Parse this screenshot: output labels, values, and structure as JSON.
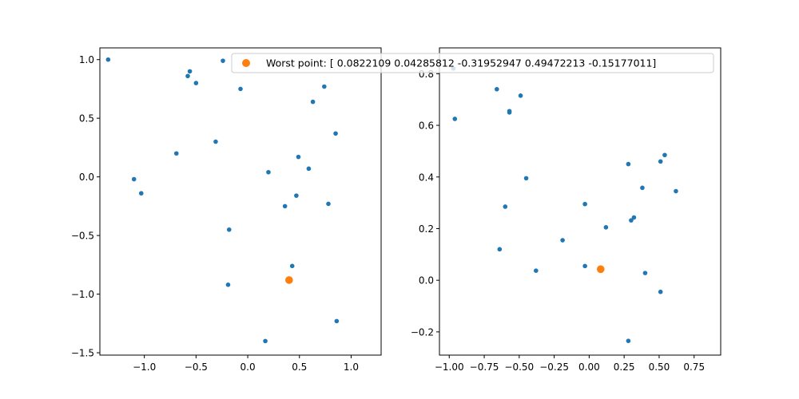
{
  "chart_data": [
    {
      "type": "scatter",
      "xlim": [
        -1.43,
        1.29
      ],
      "ylim": [
        -1.52,
        1.1
      ],
      "xticks": [
        -1.0,
        -0.5,
        0.0,
        0.5,
        1.0
      ],
      "xtick_labels": [
        "−1.0",
        "−0.5",
        "0.0",
        "0.5",
        "1.0"
      ],
      "yticks": [
        -1.5,
        -1.0,
        -0.5,
        0.0,
        0.5,
        1.0
      ],
      "ytick_labels": [
        "−1.5",
        "−1.0",
        "−0.5",
        "0.0",
        "0.5",
        "1.0"
      ],
      "grid": false,
      "series": [
        {
          "color": "#1f77b4",
          "points": [
            [
              -1.35,
              1.0
            ],
            [
              -0.56,
              0.9
            ],
            [
              -0.58,
              0.86
            ],
            [
              -0.5,
              0.8
            ],
            [
              -0.24,
              0.99
            ],
            [
              -0.07,
              0.75
            ],
            [
              0.74,
              0.77
            ],
            [
              0.63,
              0.64
            ],
            [
              0.85,
              0.37
            ],
            [
              -0.31,
              0.3
            ],
            [
              -0.69,
              0.2
            ],
            [
              0.49,
              0.17
            ],
            [
              0.59,
              0.07
            ],
            [
              0.2,
              0.04
            ],
            [
              -1.1,
              -0.02
            ],
            [
              -1.03,
              -0.14
            ],
            [
              0.47,
              -0.16
            ],
            [
              0.36,
              -0.25
            ],
            [
              0.78,
              -0.23
            ],
            [
              -0.18,
              -0.45
            ],
            [
              0.43,
              -0.76
            ],
            [
              -0.19,
              -0.92
            ],
            [
              0.86,
              -1.23
            ],
            [
              0.17,
              -1.4
            ]
          ]
        },
        {
          "name": "Worst point: [ 0.0822109   0.04285812 -0.31952947  0.49472213 -0.15177011]",
          "color": "#ff7f0e",
          "points": [
            [
              0.4,
              -0.88
            ]
          ]
        }
      ]
    },
    {
      "type": "scatter",
      "xlim": [
        -1.07,
        0.94
      ],
      "ylim": [
        -0.29,
        0.9
      ],
      "xticks": [
        -1.0,
        -0.75,
        -0.5,
        -0.25,
        0.0,
        0.25,
        0.5,
        0.75
      ],
      "xtick_labels": [
        "−1.00",
        "−0.75",
        "−0.50",
        "−0.25",
        "0.00",
        "0.25",
        "0.50",
        "0.75"
      ],
      "yticks": [
        -0.2,
        0.0,
        0.2,
        0.4,
        0.6,
        0.8
      ],
      "ytick_labels": [
        "−0.2",
        "0.0",
        "0.2",
        "0.4",
        "0.6",
        "0.8"
      ],
      "grid": false,
      "series": [
        {
          "color": "#1f77b4",
          "points": [
            [
              -0.97,
              0.82
            ],
            [
              -0.96,
              0.625
            ],
            [
              -0.66,
              0.74
            ],
            [
              -0.49,
              0.715
            ],
            [
              -0.57,
              0.655
            ],
            [
              -0.57,
              0.65
            ],
            [
              -0.45,
              0.395
            ],
            [
              -0.6,
              0.285
            ],
            [
              -0.64,
              0.12
            ],
            [
              -0.03,
              0.295
            ],
            [
              -0.38,
              0.037
            ],
            [
              -0.19,
              0.155
            ],
            [
              0.12,
              0.205
            ],
            [
              -0.03,
              0.055
            ],
            [
              0.28,
              0.45
            ],
            [
              0.51,
              0.46
            ],
            [
              0.54,
              0.485
            ],
            [
              0.38,
              0.358
            ],
            [
              0.62,
              0.345
            ],
            [
              0.32,
              0.243
            ],
            [
              0.3,
              0.232
            ],
            [
              0.4,
              0.028
            ],
            [
              0.51,
              -0.045
            ],
            [
              0.28,
              -0.235
            ]
          ]
        },
        {
          "color": "#ff7f0e",
          "points": [
            [
              0.0822109,
              0.04285812
            ]
          ]
        }
      ]
    }
  ],
  "legend": {
    "label": "Worst point: [ 0.0822109   0.04285812 -0.31952947  0.49472213 -0.15177011]",
    "color": "#ff7f0e",
    "placement": "top, spanning between the two plots"
  }
}
